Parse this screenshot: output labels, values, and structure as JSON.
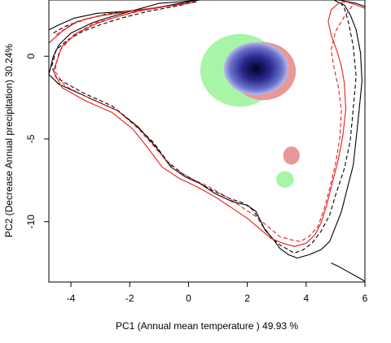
{
  "chart_data": {
    "type": "scatter",
    "xlabel": "PC1 (Annual mean temperature ) 49.93 %",
    "ylabel": "PC2 (Decrease Annual precipitation) 30.24%",
    "xlim": [
      -4.75,
      6.0
    ],
    "ylim": [
      -13.65,
      3.4
    ],
    "x_ticks": [
      -4,
      -2,
      0,
      2,
      4,
      6
    ],
    "y_ticks": [
      0,
      -5,
      -10
    ],
    "x_tick_labels": [
      "-4",
      "-2",
      "0",
      "2",
      "4",
      "6"
    ],
    "y_tick_labels": [
      "0",
      "-5",
      "-10"
    ],
    "grid": false,
    "legend": "none",
    "colors": {
      "black_line": "#000000",
      "red_line": "#e51e1e",
      "green_fill": "#a8f5a8",
      "pink_fill": "#e89898",
      "blue_center": "#00002a",
      "blue_edge": "#b8bde8"
    },
    "regions": [
      {
        "fill": "green",
        "shape": "ellipse",
        "center": [
          1.75,
          -0.85
        ],
        "radius_x": 1.35,
        "radius_y": 2.2
      },
      {
        "fill": "pink",
        "shape": "ellipse",
        "center": [
          2.55,
          -0.9
        ],
        "radius_x": 1.1,
        "radius_y": 1.75
      },
      {
        "fill": "blue-gradient",
        "shape": "ellipse",
        "center": [
          2.3,
          -0.75
        ],
        "radius_x": 1.1,
        "radius_y": 1.6
      },
      {
        "fill": "pink",
        "shape": "ellipse",
        "center": [
          3.5,
          -6.0
        ],
        "radius_x": 0.28,
        "radius_y": 0.55
      },
      {
        "fill": "green",
        "shape": "ellipse",
        "center": [
          3.28,
          -7.45
        ],
        "radius_x": 0.3,
        "radius_y": 0.5
      }
    ],
    "series": [
      {
        "color": "black",
        "dash": "solid",
        "x": [
          -4.75,
          -4.4,
          -3.9,
          -3.1,
          -2.2,
          -1.2,
          -0.3,
          0.2,
          0.4,
          -0.2,
          -1.0,
          -2.0,
          -2.8,
          -3.3,
          -4.0,
          -4.4,
          -4.6,
          -4.75,
          -4.4,
          -3.4,
          -2.4,
          -1.7,
          -1.1,
          -0.6,
          -0.1,
          0.4,
          0.9,
          1.5,
          2.0,
          2.3,
          2.6,
          2.9,
          3.1,
          3.4,
          3.7,
          4.1,
          4.5,
          4.8,
          5.0,
          5.2,
          5.4,
          5.6,
          5.7,
          5.8,
          5.9,
          5.85,
          5.7,
          5.5,
          5.3,
          5.05,
          4.95,
          5.1,
          5.4,
          5.7,
          6.0
        ],
        "y": [
          1.6,
          1.9,
          2.3,
          2.6,
          2.7,
          2.9,
          3.2,
          3.35,
          3.4,
          3.3,
          3.2,
          2.7,
          2.3,
          2.0,
          1.4,
          0.7,
          0.0,
          -1.1,
          -1.7,
          -2.5,
          -3.3,
          -4.3,
          -5.5,
          -6.7,
          -7.3,
          -7.7,
          -8.3,
          -8.8,
          -9.0,
          -9.4,
          -10.5,
          -11.1,
          -11.6,
          -12.0,
          -12.2,
          -12.0,
          -11.7,
          -11.2,
          -10.3,
          -9.4,
          -8.0,
          -6.6,
          -5.0,
          -3.3,
          -1.5,
          0.2,
          1.6,
          2.5,
          3.1,
          3.3,
          3.4,
          3.4,
          3.3,
          3.2,
          3.0
        ]
      },
      {
        "color": "black",
        "dash": "dashed",
        "x": [
          -4.6,
          -4.2,
          -3.6,
          -2.8,
          -1.8,
          -0.8,
          0.1,
          0.3,
          -0.5,
          -1.4,
          -2.3,
          -3.0,
          -3.6,
          -4.1,
          -4.5,
          -4.65,
          -4.5,
          -3.6,
          -2.6,
          -1.9,
          -1.2,
          -0.7,
          -0.2,
          0.3,
          0.8,
          1.4,
          1.9,
          2.2,
          2.5,
          2.8,
          3.1,
          3.4,
          3.6,
          3.9,
          4.2,
          4.5,
          4.8,
          5.0,
          5.3,
          5.5,
          5.6,
          5.7,
          5.6,
          5.45,
          5.3,
          5.15
        ],
        "y": [
          1.4,
          1.8,
          2.2,
          2.55,
          2.75,
          3.0,
          3.25,
          3.3,
          3.0,
          2.7,
          2.3,
          1.9,
          1.5,
          1.0,
          0.4,
          -0.6,
          -1.3,
          -2.2,
          -3.0,
          -4.0,
          -5.2,
          -6.4,
          -7.1,
          -7.6,
          -8.1,
          -8.6,
          -8.9,
          -9.3,
          -10.2,
          -10.9,
          -11.4,
          -11.7,
          -11.9,
          -11.7,
          -11.3,
          -10.6,
          -9.6,
          -8.4,
          -6.8,
          -5.1,
          -3.2,
          -1.2,
          0.6,
          2.0,
          2.9,
          3.3
        ]
      },
      {
        "color": "red",
        "dash": "solid",
        "x": [
          -4.75,
          -4.3,
          -3.8,
          -3.0,
          -2.0,
          -1.0,
          -0.4,
          0.0,
          -0.8,
          -1.8,
          -2.5,
          -3.1,
          -3.8,
          -4.3,
          -4.6,
          -4.3,
          -3.5,
          -2.6,
          -1.9,
          -1.4,
          -0.9,
          -0.3,
          0.3,
          0.9,
          1.5,
          2.0,
          2.4,
          2.8,
          3.2,
          3.6,
          4.0,
          4.3,
          4.5,
          4.7,
          4.9,
          5.1,
          5.25,
          5.35,
          5.3,
          5.2,
          5.05,
          4.85,
          4.75,
          4.85,
          5.1,
          5.35,
          5.7,
          6.0
        ],
        "y": [
          0.8,
          1.5,
          2.1,
          2.45,
          2.7,
          2.95,
          3.1,
          3.2,
          3.0,
          2.7,
          2.35,
          2.0,
          1.4,
          0.6,
          -0.9,
          -1.9,
          -2.7,
          -3.4,
          -4.4,
          -5.5,
          -6.7,
          -7.4,
          -7.9,
          -8.5,
          -9.2,
          -9.8,
          -10.4,
          -11.0,
          -11.3,
          -11.5,
          -11.3,
          -10.8,
          -10.1,
          -9.0,
          -7.6,
          -6.2,
          -4.8,
          -3.2,
          -1.6,
          -0.6,
          0.3,
          1.3,
          2.1,
          2.8,
          3.2,
          3.3,
          3.1,
          2.9
        ]
      },
      {
        "color": "red",
        "dash": "dashed",
        "x": [
          -4.5,
          -4.0,
          -3.4,
          -2.5,
          -1.5,
          -0.7,
          0.2,
          -0.6,
          -1.6,
          -2.4,
          -3.2,
          -3.9,
          -4.4,
          -4.55,
          -4.2,
          -3.3,
          -2.4,
          -1.7,
          -1.1,
          -0.5,
          0.1,
          0.7,
          1.3,
          1.8,
          2.3,
          2.7,
          3.1,
          3.5,
          3.8,
          4.1,
          4.4,
          4.6,
          4.8,
          5.0,
          5.15,
          5.2,
          5.1,
          4.95,
          4.85,
          5.0,
          5.3,
          5.55,
          5.6
        ],
        "y": [
          1.3,
          1.9,
          2.3,
          2.6,
          2.85,
          3.05,
          3.25,
          3.05,
          2.75,
          2.4,
          2.0,
          1.3,
          0.3,
          -0.9,
          -1.8,
          -2.6,
          -3.3,
          -4.4,
          -5.6,
          -6.8,
          -7.4,
          -7.9,
          -8.5,
          -9.1,
          -9.7,
          -10.3,
          -10.9,
          -11.1,
          -11.2,
          -10.9,
          -10.3,
          -9.3,
          -8.0,
          -6.5,
          -4.9,
          -3.3,
          -1.9,
          -0.7,
          0.4,
          1.5,
          2.4,
          3.0,
          3.2
        ]
      },
      {
        "color": "black",
        "dash": "solid",
        "x": [
          4.85,
          5.1,
          5.4,
          5.7,
          6.0
        ],
        "y": [
          -12.5,
          -12.7,
          -13.0,
          -13.3,
          -13.6
        ]
      }
    ]
  }
}
